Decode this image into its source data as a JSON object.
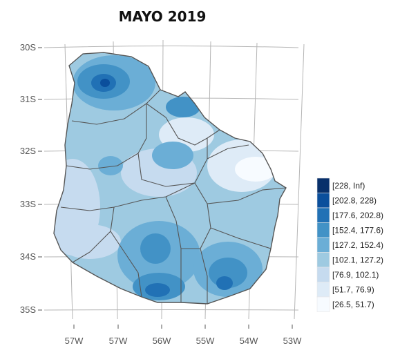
{
  "title": "MAYO  2019",
  "axes": {
    "lat_ticks": [
      "30S",
      "31S",
      "32S",
      "33S",
      "34S",
      "35S"
    ],
    "lon_ticks": [
      "57W",
      "57W",
      "56W",
      "55W",
      "54W",
      "53W"
    ]
  },
  "legend": {
    "entries": [
      {
        "label": "[228, Inf)",
        "color": "#08306b"
      },
      {
        "label": "[202.8, 228)",
        "color": "#0b4f9c"
      },
      {
        "label": "[177.6, 202.8)",
        "color": "#2171b5"
      },
      {
        "label": "[152.4, 177.6)",
        "color": "#4292c6"
      },
      {
        "label": "[127.2, 152.4)",
        "color": "#6baed6"
      },
      {
        "label": "[102.1, 127.2)",
        "color": "#9ecae1"
      },
      {
        "label": "[76.9, 102.1)",
        "color": "#c6dbef"
      },
      {
        "label": "[51.7, 76.9)",
        "color": "#deebf7"
      },
      {
        "label": "[26.5, 51.7)",
        "color": "#f7fbff"
      }
    ]
  },
  "colors": {
    "outline": "#555555",
    "grid": "#b5b5b5"
  }
}
